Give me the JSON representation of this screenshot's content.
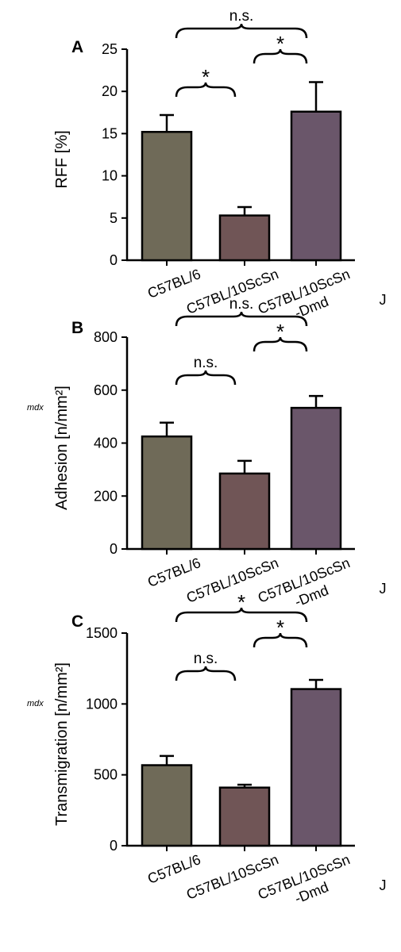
{
  "colors": {
    "bar_fills": [
      "#6f6a58",
      "#705556",
      "#6a566a"
    ],
    "axis": "#000000"
  },
  "chart_data": [
    {
      "type": "bar",
      "panel_letter": "A",
      "categories": [
        "C57BL/6",
        "C57BL/10ScSn",
        "C57BL/10ScSn\n-Dmd"
      ],
      "category_suffix": [
        "",
        "",
        "J"
      ],
      "values": [
        15.2,
        5.3,
        17.6
      ],
      "errors": [
        2.0,
        1.0,
        3.5
      ],
      "ylabel": "RFF [%]",
      "ylabel_prefix": "",
      "ylim": [
        0,
        25
      ],
      "yticks": [
        0,
        5,
        10,
        15,
        20,
        25
      ],
      "comparisons": [
        {
          "from": 0,
          "to": 1,
          "label": "*"
        },
        {
          "from": 1,
          "to": 2,
          "label": "*"
        },
        {
          "from": 0,
          "to": 2,
          "label": "n.s."
        }
      ]
    },
    {
      "type": "bar",
      "panel_letter": "B",
      "categories": [
        "C57BL/6",
        "C57BL/10ScSn",
        "C57BL/10ScSn\n-Dmd"
      ],
      "category_suffix": [
        "",
        "",
        "J"
      ],
      "values": [
        425,
        285,
        533
      ],
      "errors": [
        52,
        48,
        45
      ],
      "ylabel": "Adhesion [n/mm²]",
      "ylabel_prefix": "mdx",
      "ylim": [
        0,
        800
      ],
      "yticks": [
        0,
        200,
        400,
        600,
        800
      ],
      "comparisons": [
        {
          "from": 0,
          "to": 1,
          "label": "n.s."
        },
        {
          "from": 1,
          "to": 2,
          "label": "*"
        },
        {
          "from": 0,
          "to": 2,
          "label": "n.s."
        }
      ]
    },
    {
      "type": "bar",
      "panel_letter": "C",
      "categories": [
        "C57BL/6",
        "C57BL/10ScSn",
        "C57BL/10ScSn\n-Dmd"
      ],
      "category_suffix": [
        "",
        "",
        "J"
      ],
      "values": [
        568,
        410,
        1105
      ],
      "errors": [
        65,
        20,
        65
      ],
      "ylabel": "Transmigration [n/mm²]",
      "ylabel_prefix": "mdx",
      "ylim": [
        0,
        1500
      ],
      "yticks": [
        0,
        500,
        1000,
        1500
      ],
      "comparisons": [
        {
          "from": 0,
          "to": 1,
          "label": "n.s."
        },
        {
          "from": 1,
          "to": 2,
          "label": "*"
        },
        {
          "from": 0,
          "to": 2,
          "label": "*"
        }
      ]
    }
  ]
}
